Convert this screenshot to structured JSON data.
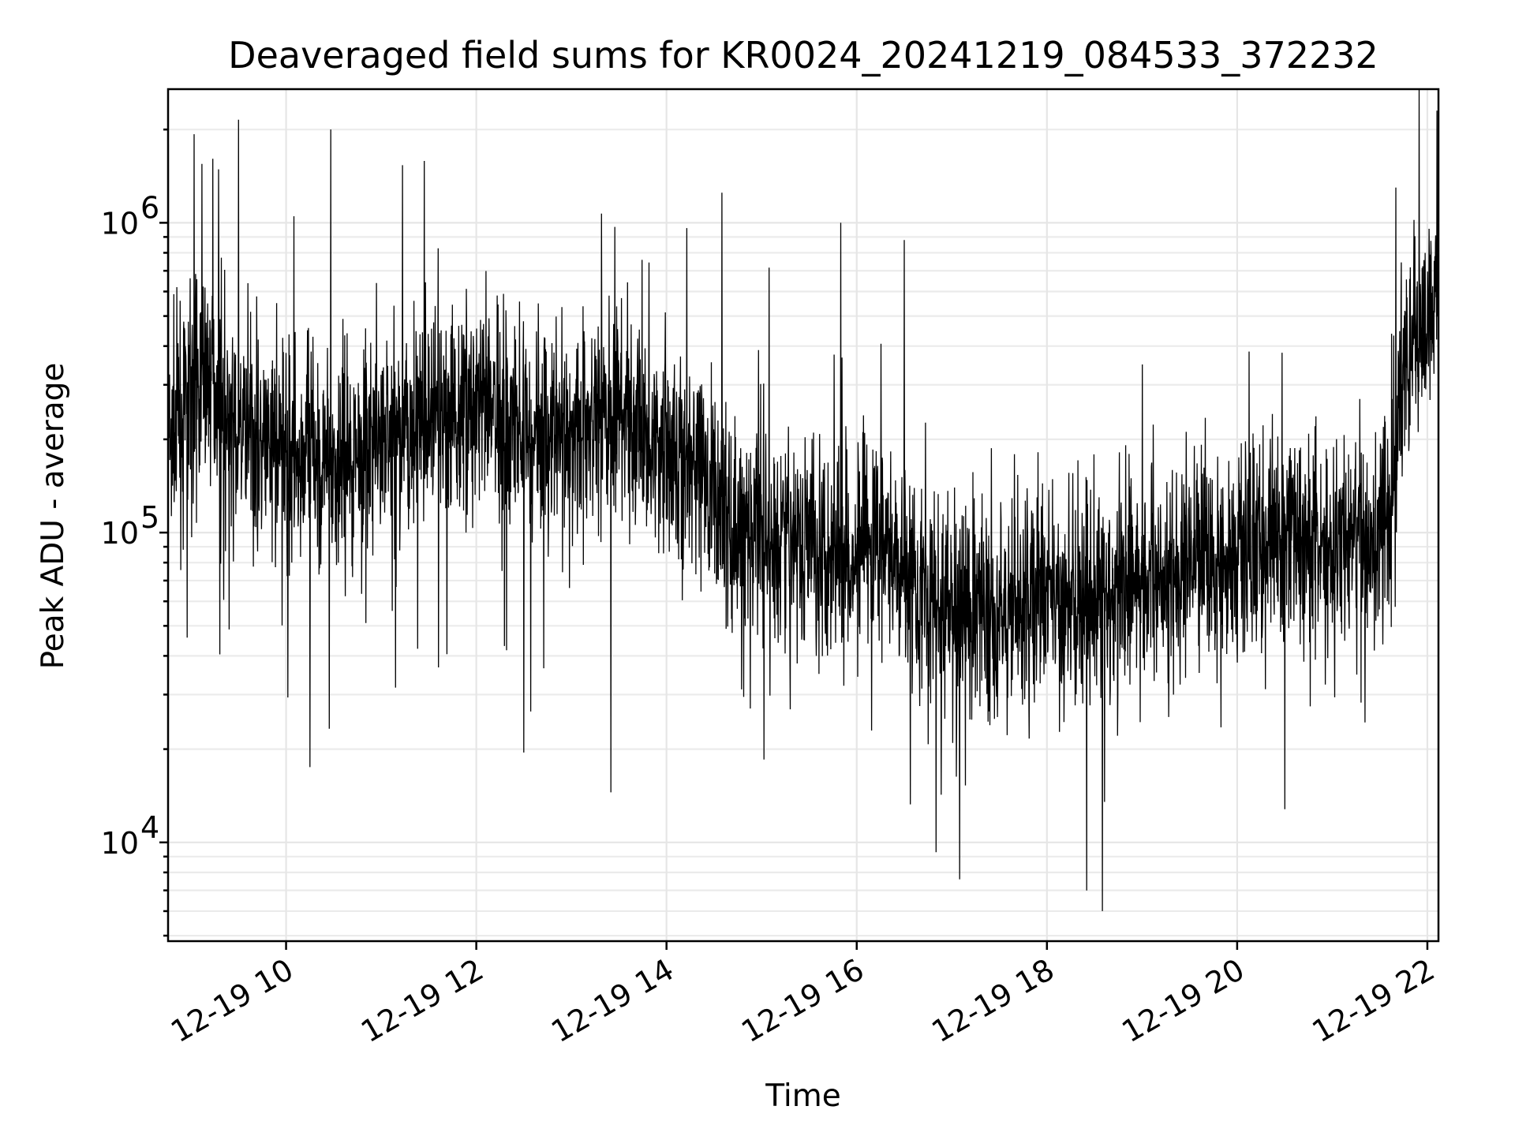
{
  "chart_data": {
    "type": "line",
    "title": "Deaveraged field sums for KR0024_20241219_084533_372232",
    "xlabel": "Time",
    "ylabel": "Peak ADU - average",
    "yscale": "log",
    "ylim": [
      4800,
      2700000
    ],
    "xlim": [
      "2024-12-19T08:45:33",
      "2024-12-19T22:07:00"
    ],
    "x_ticks": [
      "12-19 10",
      "12-19 12",
      "12-19 14",
      "12-19 16",
      "12-19 18",
      "12-19 20",
      "12-19 22"
    ],
    "x_tick_times": [
      "2024-12-19T10:00:00",
      "2024-12-19T12:00:00",
      "2024-12-19T14:00:00",
      "2024-12-19T16:00:00",
      "2024-12-19T18:00:00",
      "2024-12-19T20:00:00",
      "2024-12-19T22:00:00"
    ],
    "y_ticks": [
      {
        "base": "10",
        "exp": "4",
        "value": 10000
      },
      {
        "base": "10",
        "exp": "5",
        "value": 100000
      },
      {
        "base": "10",
        "exp": "6",
        "value": 1000000
      }
    ],
    "grid": true,
    "line_color": "#000000",
    "series": [
      {
        "trend": [
          [
            "2024-12-19T08:45:33",
            180000
          ],
          [
            "2024-12-19T09:00:00",
            280000
          ],
          [
            "2024-12-19T09:12:00",
            350000
          ],
          [
            "2024-12-19T09:25:00",
            200000
          ],
          [
            "2024-12-19T10:00:00",
            180000
          ],
          [
            "2024-12-19T10:30:00",
            170000
          ],
          [
            "2024-12-19T11:00:00",
            200000
          ],
          [
            "2024-12-19T11:30:00",
            230000
          ],
          [
            "2024-12-19T12:00:00",
            260000
          ],
          [
            "2024-12-19T12:30:00",
            220000
          ],
          [
            "2024-12-19T13:00:00",
            220000
          ],
          [
            "2024-12-19T13:30:00",
            240000
          ],
          [
            "2024-12-19T14:00:00",
            190000
          ],
          [
            "2024-12-19T14:30:00",
            140000
          ],
          [
            "2024-12-19T14:40:00",
            100000
          ],
          [
            "2024-12-19T15:00:00",
            100000
          ],
          [
            "2024-12-19T15:30:00",
            95000
          ],
          [
            "2024-12-19T16:00:00",
            90000
          ],
          [
            "2024-12-19T16:30:00",
            85000
          ],
          [
            "2024-12-19T16:45:00",
            60000
          ],
          [
            "2024-12-19T17:30:00",
            55000
          ],
          [
            "2024-12-19T18:00:00",
            60000
          ],
          [
            "2024-12-19T18:30:00",
            58000
          ],
          [
            "2024-12-19T19:00:00",
            70000
          ],
          [
            "2024-12-19T19:30:00",
            80000
          ],
          [
            "2024-12-19T20:00:00",
            85000
          ],
          [
            "2024-12-19T20:30:00",
            100000
          ],
          [
            "2024-12-19T21:00:00",
            90000
          ],
          [
            "2024-12-19T21:30:00",
            110000
          ],
          [
            "2024-12-19T21:40:00",
            150000
          ],
          [
            "2024-12-19T21:45:00",
            400000
          ],
          [
            "2024-12-19T22:07:00",
            550000
          ]
        ],
        "spikes": [
          [
            "2024-12-19T08:45:40",
            1800000
          ],
          [
            "2024-12-19T09:07:00",
            1550000
          ],
          [
            "2024-12-19T09:30:00",
            2150000
          ],
          [
            "2024-12-19T10:05:00",
            1050000
          ],
          [
            "2024-12-19T14:35:00",
            1250000
          ],
          [
            "2024-12-19T15:50:00",
            1000000
          ],
          [
            "2024-12-19T16:30:00",
            880000
          ],
          [
            "2024-12-19T21:40:00",
            1300000
          ],
          [
            "2024-12-19T22:06:00",
            2300000
          ]
        ],
        "dips": [
          [
            "2024-12-19T10:15:00",
            17500
          ],
          [
            "2024-12-19T12:30:00",
            19500
          ],
          [
            "2024-12-19T13:25:00",
            14500
          ],
          [
            "2024-12-19T16:50:00",
            9300
          ],
          [
            "2024-12-19T17:05:00",
            7600
          ],
          [
            "2024-12-19T18:25:00",
            7000
          ],
          [
            "2024-12-19T18:35:00",
            6000
          ],
          [
            "2024-12-19T20:30:00",
            12800
          ]
        ]
      }
    ]
  }
}
